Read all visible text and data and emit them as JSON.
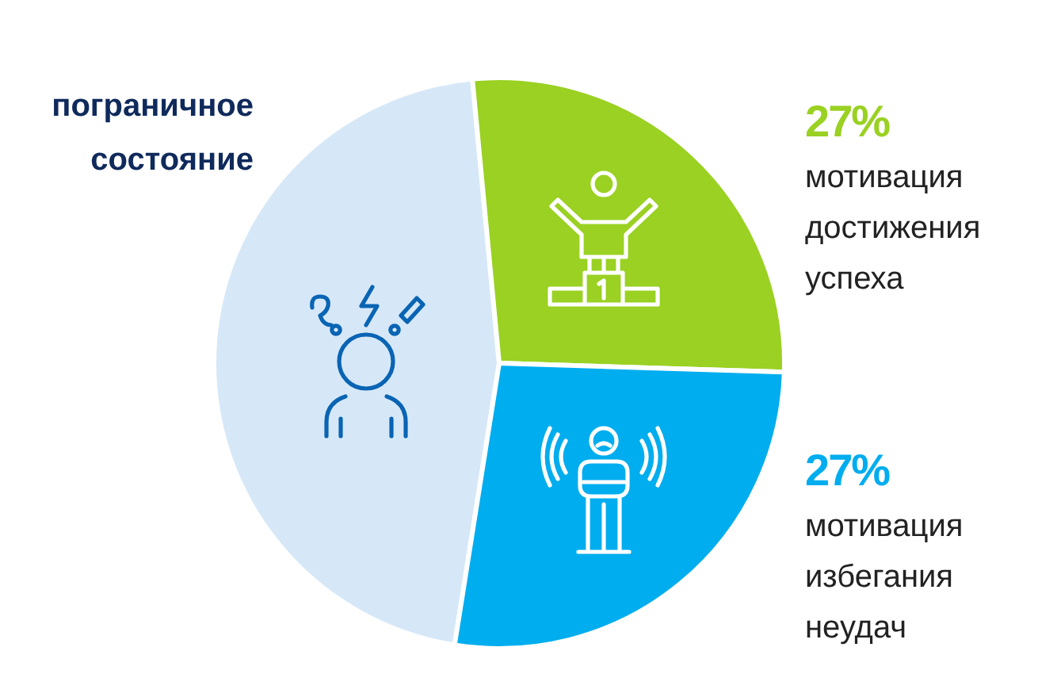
{
  "chart_data": {
    "type": "pie",
    "categories": [
      "пограничное состояние",
      "мотивация достижения успеха",
      "мотивация избегания неудач"
    ],
    "values": [
      46,
      27,
      27
    ],
    "colors": [
      "#d6e8f8",
      "#9ad122",
      "#00adee"
    ],
    "value_labels": [
      null,
      "27%",
      "27%"
    ]
  }
}
